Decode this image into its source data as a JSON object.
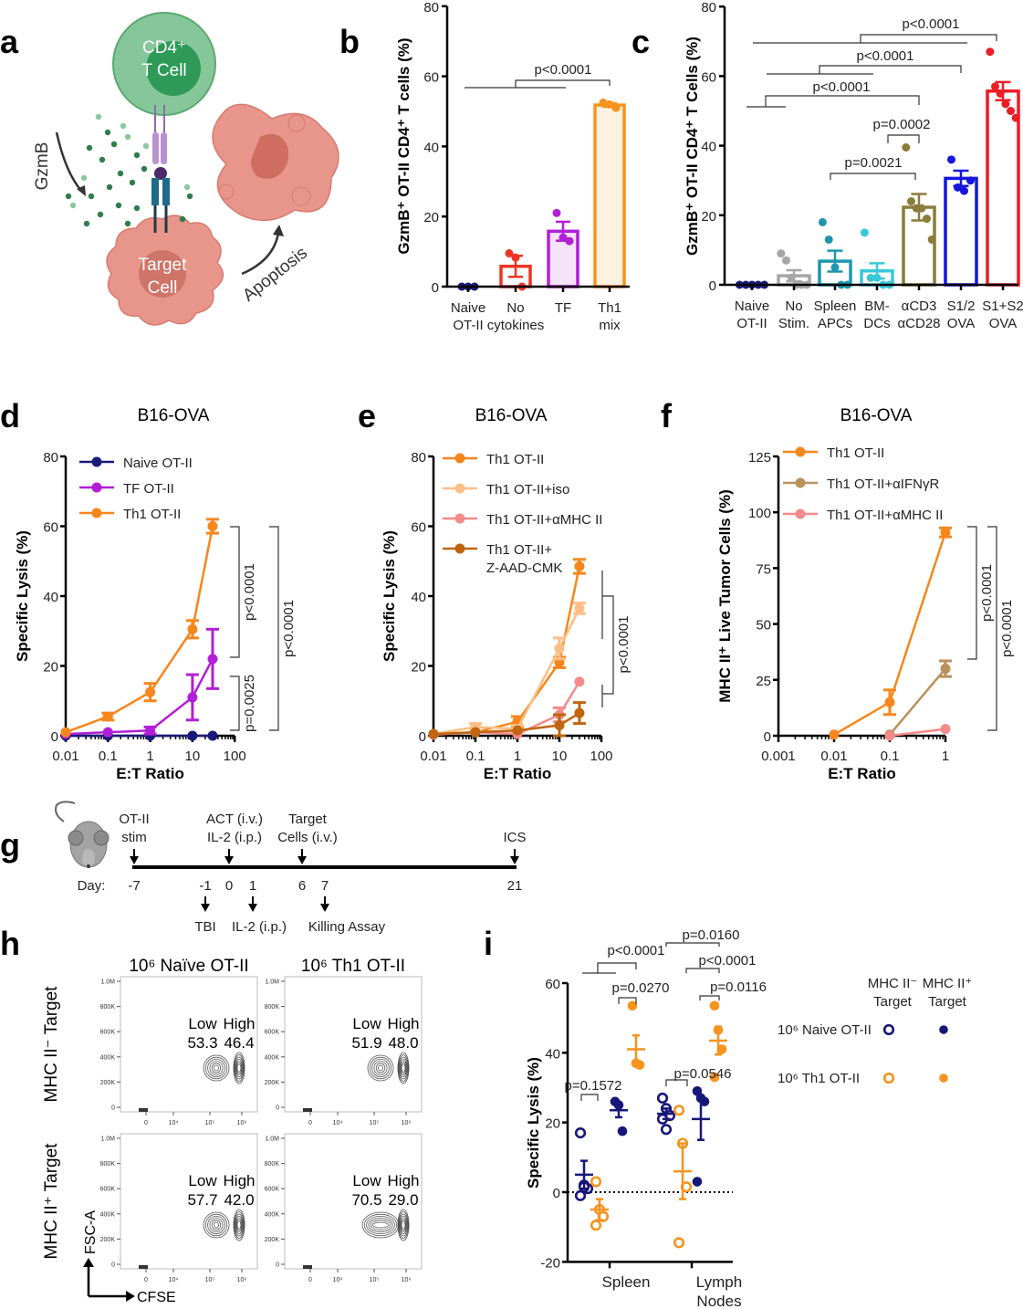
{
  "panel_letters": [
    "a",
    "b",
    "c",
    "d",
    "e",
    "f",
    "g",
    "h",
    "i"
  ],
  "diagram_a": {
    "t_cell_label": [
      "CD4⁺",
      "T Cell"
    ],
    "target_cell_label": [
      "Target",
      "Cell"
    ],
    "gzmb_label": "GzmB",
    "apoptosis_label": "Apoptosis",
    "colors": {
      "t_cell": "#86c79a",
      "target_cell": "#e8968b",
      "granzyme": "#2e7d4a"
    }
  },
  "timeline_g": {
    "day_label": "Day:",
    "days": [
      "-7",
      "-1",
      "0",
      "1",
      "6",
      "7",
      "21"
    ],
    "above_events": [
      {
        "day": "-7",
        "lines": [
          "OT-II",
          "stim"
        ]
      },
      {
        "day": "0",
        "lines": [
          "ACT (i.v.)",
          "IL-2 (i.p.)"
        ]
      },
      {
        "day": "6",
        "lines": [
          "Target",
          "Cells (i.v.)"
        ]
      },
      {
        "day": "21",
        "lines": [
          "ICS"
        ]
      }
    ],
    "below_events": [
      {
        "day": "-1",
        "label": "TBI"
      },
      {
        "day": "1",
        "label": "IL-2 (i.p.)"
      },
      {
        "day": "7",
        "label": "Killing Assay"
      }
    ]
  },
  "chart_data": [
    {
      "id": "b",
      "type": "bar",
      "ylabel": "GzmB⁺ OT-II CD4⁺ T cells (%)",
      "ylim": [
        0,
        80
      ],
      "yticks": [
        "0",
        "20",
        "40",
        "60",
        "80"
      ],
      "categories": [
        [
          "Naive",
          "OT-II"
        ],
        [
          "No",
          "cytokines"
        ],
        [
          "TF",
          ""
        ],
        [
          "Th1",
          "mix"
        ]
      ],
      "means": [
        0,
        5.8,
        15.8,
        51.8
      ],
      "sem": [
        0,
        3.0,
        2.7,
        0.5
      ],
      "points": [
        [
          0,
          0,
          0
        ],
        [
          9.5,
          8.3,
          0
        ],
        [
          21,
          14,
          13
        ],
        [
          52.5,
          52,
          51
        ]
      ],
      "colors": [
        "#1a1a7a",
        "#ee3524",
        "#b21fd6",
        "#f7941d"
      ],
      "fills": [
        "none",
        "#ffffff",
        "#f4e3f9",
        "#fef1e2"
      ],
      "annotations": [
        "p<0.0001"
      ]
    },
    {
      "id": "c",
      "type": "bar",
      "ylabel": "GzmB⁺ OT-II CD4⁺ T Cells (%)",
      "ylim": [
        0,
        80
      ],
      "yticks": [
        "0",
        "20",
        "40",
        "60",
        "80"
      ],
      "categories": [
        [
          "Naive",
          "OT-II"
        ],
        [
          "No",
          "Stim."
        ],
        [
          "Spleen",
          "APCs"
        ],
        [
          "BM-",
          "DCs"
        ],
        [
          "αCD3",
          "αCD28"
        ],
        [
          "S1/2",
          "OVA"
        ],
        [
          "S1+S2",
          "OVA"
        ]
      ],
      "means": [
        0,
        2.6,
        6.8,
        4.0,
        22.3,
        30.6,
        55.7
      ],
      "sem": [
        0,
        1.6,
        3.0,
        2.2,
        3.8,
        2.2,
        2.6
      ],
      "points": [
        [
          0,
          0,
          0,
          0,
          0
        ],
        [
          9,
          7,
          2,
          0,
          0,
          0
        ],
        [
          18,
          13,
          5,
          0,
          0
        ],
        [
          15,
          2,
          2,
          0,
          0
        ],
        [
          39.5,
          24,
          22,
          22,
          19,
          13
        ],
        [
          36,
          28,
          27,
          30
        ],
        [
          67,
          57,
          55,
          52,
          50,
          48
        ]
      ],
      "colors": [
        "#1a1a7a",
        "#a6a6a6",
        "#1e96b0",
        "#38c8d8",
        "#8b7d3a",
        "#1515e0",
        "#ee1c25"
      ],
      "fills": [
        "none",
        "#ffffff",
        "#ffffff",
        "#ffffff",
        "#ffffff",
        "#ffffff",
        "#ffffff"
      ],
      "annotations": [
        "p<0.0001",
        "p<0.0001",
        "p<0.0001",
        "p=0.0002",
        "p=0.0021"
      ]
    },
    {
      "id": "d",
      "type": "line",
      "title": "B16-OVA",
      "xlabel": "E:T Ratio",
      "ylabel": "Specific Lysis (%)",
      "xscale": "log",
      "xlim": [
        0.01,
        100
      ],
      "xticks": [
        "0.01",
        "0.1",
        "1",
        "10",
        "100"
      ],
      "ylim": [
        0,
        80
      ],
      "yticks": [
        "0",
        "20",
        "40",
        "60",
        "80"
      ],
      "legend_position": "top-left",
      "series": [
        {
          "name": "Naive OT-II",
          "color": "#1a1a7a",
          "x": [
            0.01,
            0.1,
            1,
            10,
            30
          ],
          "y": [
            0,
            0,
            0,
            0,
            0
          ],
          "err": [
            0,
            0,
            0,
            0,
            0
          ]
        },
        {
          "name": "TF OT-II",
          "color": "#b21fd6",
          "x": [
            0.01,
            0.1,
            1,
            10,
            30
          ],
          "y": [
            0.5,
            1,
            1.5,
            11,
            22
          ],
          "err": [
            0,
            0,
            1,
            6.5,
            8.5
          ]
        },
        {
          "name": "Th1 OT-II",
          "color": "#f7861d",
          "x": [
            0.01,
            0.1,
            1,
            10,
            30
          ],
          "y": [
            1,
            5.5,
            12.5,
            30.5,
            60
          ],
          "err": [
            0,
            1,
            2.5,
            2.5,
            2
          ]
        }
      ],
      "annotations": [
        "p<0.0001",
        "p=0.0025",
        "p<0.0001"
      ]
    },
    {
      "id": "e",
      "type": "line",
      "title": "B16-OVA",
      "xlabel": "E:T Ratio",
      "ylabel": "Specific Lysis (%)",
      "xscale": "log",
      "xlim": [
        0.01,
        100
      ],
      "xticks": [
        "0.01",
        "0.1",
        "1",
        "10",
        "100"
      ],
      "ylim": [
        0,
        80
      ],
      "yticks": [
        "0",
        "20",
        "40",
        "60",
        "80"
      ],
      "legend_position": "top-left",
      "series": [
        {
          "name": "Th1 OT-II",
          "color": "#f7861d",
          "x": [
            0.01,
            0.1,
            1,
            10,
            30
          ],
          "y": [
            0.5,
            1,
            4,
            21,
            48.5
          ],
          "err": [
            0,
            0,
            1.5,
            1.5,
            2
          ]
        },
        {
          "name": "Th1 OT-II+iso",
          "color": "#fbbf85",
          "x": [
            0.01,
            0.1,
            1,
            10,
            30
          ],
          "y": [
            0.5,
            2.5,
            2,
            25,
            36.5
          ],
          "err": [
            0,
            1,
            1,
            3,
            1.5
          ]
        },
        {
          "name": "Th1 OT-II+αMHC II",
          "color": "#f48a8a",
          "x": [
            0.01,
            0.1,
            1,
            10,
            30
          ],
          "y": [
            0.3,
            1,
            0.5,
            6,
            15.5
          ],
          "err": [
            0,
            0,
            0,
            2,
            0
          ]
        },
        {
          "name": "Th1 OT-II+ Z-AAD-CMK",
          "color": "#c0650f",
          "x": [
            0.01,
            0.1,
            1,
            10,
            30
          ],
          "y": [
            0.5,
            1,
            1.5,
            3,
            6.5
          ],
          "err": [
            0,
            0,
            0,
            3,
            3
          ]
        }
      ],
      "annotations": [
        "p<0.0001"
      ]
    },
    {
      "id": "f",
      "type": "line",
      "title": "B16-OVA",
      "xlabel": "E:T Ratio",
      "ylabel": "MHC II⁺ Live Tumor Cells (%)",
      "xscale": "log",
      "xlim": [
        0.001,
        1
      ],
      "xticks": [
        "0.001",
        "0.01",
        "0.1",
        "1"
      ],
      "ylim": [
        0,
        125
      ],
      "yticks": [
        "0",
        "25",
        "50",
        "75",
        "100",
        "125"
      ],
      "legend_position": "top-left",
      "series": [
        {
          "name": "Th1 OT-II",
          "color": "#f7861d",
          "x": [
            0.01,
            0.1,
            1
          ],
          "y": [
            0.5,
            15,
            91
          ],
          "err": [
            0,
            5.5,
            2
          ]
        },
        {
          "name": "Th1 OT-II+αIFNγR",
          "color": "#b8925a",
          "x": [
            0.1,
            1
          ],
          "y": [
            0.5,
            30
          ],
          "err": [
            0,
            3.5
          ]
        },
        {
          "name": "Th1 OT-II+αMHC II",
          "color": "#f48a8a",
          "x": [
            0.1,
            1
          ],
          "y": [
            0,
            3
          ],
          "err": [
            0,
            0
          ]
        }
      ],
      "annotations": [
        "p<0.0001",
        "p<0.0001"
      ]
    },
    {
      "id": "h",
      "type": "scatter",
      "column_titles": [
        "10⁶ Naïve OT-II",
        "10⁶ Th1 OT-II"
      ],
      "row_titles": [
        "MHC II⁻ Target",
        "MHC II⁺ Target"
      ],
      "xlabel": "CFSE",
      "ylabel": "FSC-A",
      "yticks": [
        "1.0M",
        "800K",
        "600K",
        "400K",
        "200K",
        "0"
      ],
      "xticks": [
        "0",
        "10⁴",
        "10⁵",
        "10⁶"
      ],
      "gate_labels": [
        "Low",
        "High"
      ],
      "panels": [
        {
          "row": 0,
          "col": 0,
          "low": "53.3",
          "high": "46.4"
        },
        {
          "row": 0,
          "col": 1,
          "low": "51.9",
          "high": "48.0"
        },
        {
          "row": 1,
          "col": 0,
          "low": "57.7",
          "high": "42.0"
        },
        {
          "row": 1,
          "col": 1,
          "low": "70.5",
          "high": "29.0"
        }
      ]
    },
    {
      "id": "i",
      "type": "scatter",
      "ylabel": "Specific Lysis (%)",
      "ylim": [
        -20,
        60
      ],
      "yticks": [
        "-20",
        "0",
        "20",
        "40",
        "60"
      ],
      "categories": [
        "Spleen",
        "Lymph Nodes"
      ],
      "legend": {
        "col_headers": [
          [
            "MHC II⁻",
            "Target"
          ],
          [
            "MHC II⁺",
            "Target"
          ]
        ],
        "rows": [
          "10⁶ Naive OT-II",
          "10⁶ Th1 OT-II"
        ]
      },
      "groups": [
        {
          "tissue": "Spleen",
          "effector": "10⁶ Naive OT-II",
          "target": "MHC II⁻",
          "color": "#17177a",
          "open": true,
          "points": [
            17,
            2,
            1,
            -1,
            1.5
          ],
          "mean": 5,
          "sem": 4
        },
        {
          "tissue": "Spleen",
          "effector": "10⁶ Th1 OT-II",
          "target": "MHC II⁻",
          "color": "#f7931e",
          "open": true,
          "points": [
            3,
            -5,
            -7,
            -9.5
          ],
          "mean": -5,
          "sem": 3
        },
        {
          "tissue": "Spleen",
          "effector": "10⁶ Naive OT-II",
          "target": "MHC II⁺",
          "color": "#17177a",
          "open": false,
          "points": [
            26,
            25,
            17.5
          ],
          "mean": 23.5,
          "sem": 2
        },
        {
          "tissue": "Spleen",
          "effector": "10⁶ Th1 OT-II",
          "target": "MHC II⁺",
          "color": "#f7931e",
          "open": false,
          "points": [
            53.5,
            37,
            36.5
          ],
          "mean": 41,
          "sem": 4
        },
        {
          "tissue": "Lymph Nodes",
          "effector": "10⁶ Naive OT-II",
          "target": "MHC II⁻",
          "color": "#17177a",
          "open": true,
          "points": [
            27,
            24,
            22,
            21,
            18
          ],
          "mean": 22.5,
          "sem": 1.5
        },
        {
          "tissue": "Lymph Nodes",
          "effector": "10⁶ Th1 OT-II",
          "target": "MHC II⁻",
          "color": "#f7931e",
          "open": true,
          "points": [
            23.5,
            14,
            1.5,
            -14.5
          ],
          "mean": 6,
          "sem": 8
        },
        {
          "tissue": "Lymph Nodes",
          "effector": "10⁶ Naive OT-II",
          "target": "MHC II⁺",
          "color": "#17177a",
          "open": false,
          "points": [
            29,
            27,
            26,
            3
          ],
          "mean": 21,
          "sem": 6
        },
        {
          "tissue": "Lymph Nodes",
          "effector": "10⁶ Th1 OT-II",
          "target": "MHC II⁺",
          "color": "#f7931e",
          "open": false,
          "points": [
            53.5,
            46.5,
            41,
            33
          ],
          "mean": 43.5,
          "sem": 4
        }
      ],
      "annotations": [
        "p<0.0001",
        "p=0.0270",
        "p=0.1572",
        "p=0.0546",
        "p=0.0160",
        "p<0.0001",
        "p=0.0116"
      ]
    }
  ]
}
